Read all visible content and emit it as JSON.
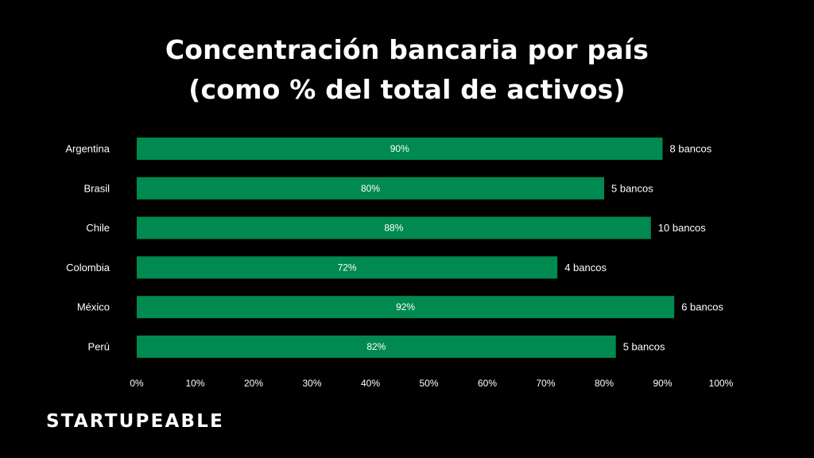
{
  "title": {
    "line1": "Concentración bancaria por país",
    "line2": "(como % del total de activos)"
  },
  "brand": "STARTUPEABLE",
  "colors": {
    "background": "#000000",
    "bar": "#008a4f",
    "text": "#ffffff"
  },
  "chart_data": {
    "type": "bar",
    "orientation": "horizontal",
    "title": "Concentración bancaria por país (como % del total de activos)",
    "categories": [
      "Argentina",
      "Brasil",
      "Chile",
      "Colombia",
      "México",
      "Perú"
    ],
    "values": [
      90,
      80,
      88,
      72,
      92,
      82
    ],
    "value_labels": [
      "90%",
      "80%",
      "88%",
      "72%",
      "92%",
      "82%"
    ],
    "annotations": [
      "8 bancos",
      "5 bancos",
      "10 bancos",
      "4 bancos",
      "6 bancos",
      "5 bancos"
    ],
    "xlim": [
      0,
      100
    ],
    "xticks": [
      "0%",
      "10%",
      "20%",
      "30%",
      "40%",
      "50%",
      "60%",
      "70%",
      "80%",
      "90%",
      "100%"
    ],
    "grid": false,
    "legend": false
  }
}
